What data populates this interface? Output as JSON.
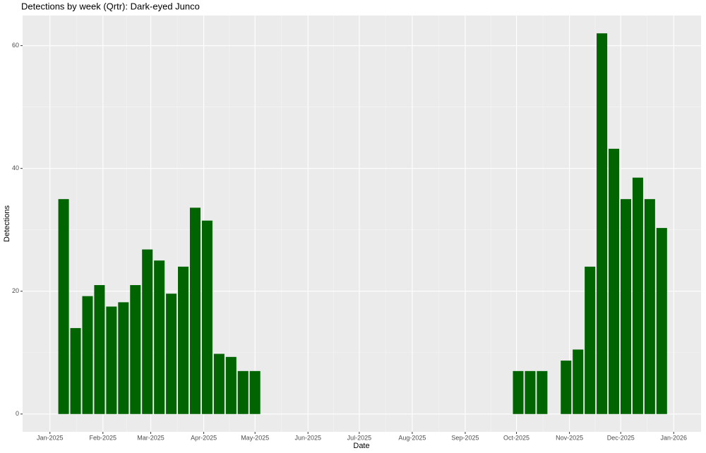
{
  "chart_data": {
    "type": "bar",
    "title": "Detections by week (Qrtr): Dark-eyed Junco",
    "x_label": "Date",
    "y_label": "Detections",
    "color": "#006400",
    "grid": true,
    "x": [
      "2025-01-09",
      "2025-01-16",
      "2025-01-23",
      "2025-01-30",
      "2025-02-06",
      "2025-02-13",
      "2025-02-20",
      "2025-02-27",
      "2025-03-06",
      "2025-03-13",
      "2025-03-20",
      "2025-03-27",
      "2025-04-03",
      "2025-04-10",
      "2025-04-17",
      "2025-04-24",
      "2025-05-01",
      "2025-10-02",
      "2025-10-09",
      "2025-10-16",
      "2025-10-30",
      "2025-11-06",
      "2025-11-13",
      "2025-11-20",
      "2025-11-27",
      "2025-12-04",
      "2025-12-11",
      "2025-12-18",
      "2025-12-25"
    ],
    "values": [
      35,
      14,
      19.2,
      21,
      17.5,
      18.2,
      21,
      26.8,
      25,
      19.6,
      24,
      33.6,
      31.5,
      9.8,
      9.3,
      7,
      7,
      7,
      7,
      7,
      8.7,
      10.5,
      24,
      62,
      43.2,
      35,
      38.5,
      35,
      30.3
    ],
    "xlim": [
      "2024-12-16",
      "2026-01-17"
    ],
    "xticks": [
      {
        "value": "2025-01-01",
        "label": "Jan-2025"
      },
      {
        "value": "2025-02-01",
        "label": "Feb-2025"
      },
      {
        "value": "2025-03-01",
        "label": "Mar-2025"
      },
      {
        "value": "2025-04-01",
        "label": "Apr-2025"
      },
      {
        "value": "2025-05-01",
        "label": "May-2025"
      },
      {
        "value": "2025-06-01",
        "label": "Jun-2025"
      },
      {
        "value": "2025-07-01",
        "label": "Jul-2025"
      },
      {
        "value": "2025-08-01",
        "label": "Aug-2025"
      },
      {
        "value": "2025-09-01",
        "label": "Sep-2025"
      },
      {
        "value": "2025-10-01",
        "label": "Oct-2025"
      },
      {
        "value": "2025-11-01",
        "label": "Nov-2025"
      },
      {
        "value": "2025-12-01",
        "label": "Dec-2025"
      },
      {
        "value": "2026-01-01",
        "label": "Jan-2026"
      }
    ],
    "ylim": [
      -2.9,
      64.9
    ],
    "yticks": [
      0,
      20,
      40,
      60
    ]
  }
}
